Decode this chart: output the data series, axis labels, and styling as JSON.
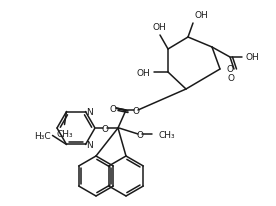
{
  "bg_color": "#ffffff",
  "line_color": "#1a1a1a",
  "line_width": 1.1,
  "figsize": [
    2.76,
    2.07
  ],
  "dpi": 100,
  "xlim": [
    0,
    276
  ],
  "ylim": [
    0,
    207
  ]
}
